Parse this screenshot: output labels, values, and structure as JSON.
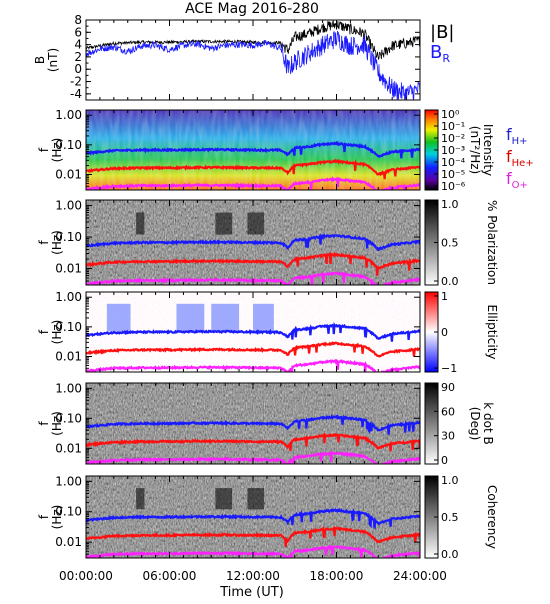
{
  "title": "ACE Mag 2016-280",
  "chart_data": [
    {
      "type": "line",
      "ylabel_main": "B",
      "ylabel_unit": "(nT)",
      "ylim": [
        -5,
        8
      ],
      "yticks": [
        "8",
        "6",
        "4",
        "2",
        "0",
        "-2",
        "-4"
      ],
      "legend_B": "|B|",
      "legend_BR_main": "B",
      "legend_BR_sub": "R",
      "series": [
        {
          "name": "|B|",
          "color": "#000000",
          "x": [
            0,
            2,
            4,
            6,
            8,
            10,
            12,
            14,
            14.5,
            15,
            16,
            17,
            18,
            19,
            20,
            21,
            22,
            23,
            24
          ],
          "y": [
            3.4,
            4.2,
            4.4,
            4.4,
            4.5,
            4.5,
            4.4,
            4.3,
            3.0,
            5.2,
            5.8,
            6.8,
            7.3,
            6.5,
            5.8,
            1.8,
            3.8,
            4.2,
            4.7
          ]
        },
        {
          "name": "B_R",
          "color": "#1a1aff",
          "x": [
            0,
            1,
            2,
            3,
            4,
            5,
            6,
            7,
            8,
            9,
            10,
            11,
            12,
            13,
            14,
            14.5,
            15,
            16,
            17,
            18,
            19,
            20,
            21,
            22,
            23,
            24
          ],
          "y": [
            2.5,
            3.3,
            3.6,
            2.9,
            3.8,
            3.9,
            3.2,
            3.9,
            4.1,
            3.4,
            3.9,
            4.0,
            3.9,
            4.2,
            3.4,
            0.0,
            1.2,
            2.6,
            3.9,
            5.0,
            3.8,
            4.0,
            -0.5,
            -3.2,
            -4.0,
            -3.2
          ]
        }
      ]
    },
    {
      "type": "heatmap",
      "kind": "intensity",
      "ylabel_main": "f",
      "ylabel_unit": "(Hz)",
      "ylim_log": [
        0.003,
        1.5
      ],
      "yticks": [
        "1.00",
        "0.10",
        "0.01"
      ],
      "colorbar_label": "Intensity",
      "colorbar_unit": "(nT²/Hz)",
      "colorbar_ticks": [
        "10⁰",
        "10⁻¹",
        "10⁻²",
        "10⁻³",
        "10⁻⁴",
        "10⁻⁵",
        "10⁻⁶"
      ],
      "legend": [
        {
          "main": "f",
          "sub": "H+",
          "color": "#2222cc"
        },
        {
          "main": "f",
          "sub": "He+",
          "color": "#dd0000"
        },
        {
          "main": "f",
          "sub": "O+",
          "color": "#dd22dd"
        }
      ]
    },
    {
      "type": "heatmap",
      "kind": "gray",
      "ylabel_main": "f",
      "ylabel_unit": "(Hz)",
      "yticks": [
        "1.00",
        "0.10",
        "0.01"
      ],
      "colorbar_label": "% Polarization",
      "colorbar_ticks": [
        "1.0",
        "0.5",
        "0.0"
      ]
    },
    {
      "type": "heatmap",
      "kind": "ellipticity",
      "ylabel_main": "f",
      "ylabel_unit": "(Hz)",
      "yticks": [
        "1.00",
        "0.10",
        "0.01"
      ],
      "colorbar_label": "Ellipticity",
      "colorbar_ticks": [
        "1",
        "0",
        "−1"
      ]
    },
    {
      "type": "heatmap",
      "kind": "gray",
      "ylabel_main": "f",
      "ylabel_unit": "(Hz)",
      "yticks": [
        "1.00",
        "0.10",
        "0.01"
      ],
      "colorbar_label": "k dot B",
      "colorbar_unit": "(Deg)",
      "colorbar_ticks": [
        "90",
        "60",
        "30",
        "0"
      ]
    },
    {
      "type": "heatmap",
      "kind": "gray",
      "ylabel_main": "f",
      "ylabel_unit": "(Hz)",
      "yticks": [
        "1.00",
        "0.10",
        "0.01"
      ],
      "colorbar_label": "Coherency",
      "colorbar_ticks": [
        "1.0",
        "0.5",
        "0.0"
      ]
    }
  ],
  "gyrofrequency_lines": {
    "x": [
      0,
      2,
      4,
      6,
      8,
      10,
      12,
      14,
      14.5,
      15,
      16,
      17,
      18,
      19,
      20,
      21,
      22,
      23,
      24
    ],
    "fH": [
      0.052,
      0.064,
      0.067,
      0.067,
      0.069,
      0.069,
      0.067,
      0.066,
      0.046,
      0.079,
      0.088,
      0.104,
      0.111,
      0.099,
      0.088,
      0.04,
      0.058,
      0.064,
      0.072
    ]
  },
  "xaxis": {
    "label": "Time (UT)",
    "xlim": [
      0,
      24
    ],
    "ticks": [
      0,
      6,
      12,
      18,
      24
    ],
    "tick_labels": [
      "00:00:00",
      "06:00:00",
      "12:00:00",
      "18:00:00",
      "24:00:00"
    ]
  }
}
